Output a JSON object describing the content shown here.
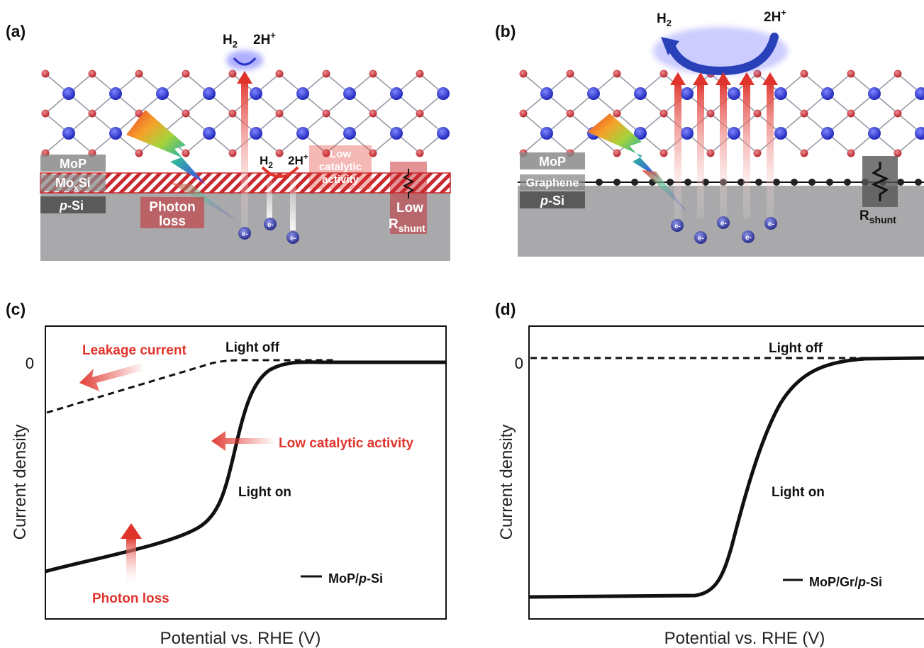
{
  "panels": {
    "a": {
      "label": "(a)",
      "layers": {
        "top": "MoP",
        "mid_main": "Mo",
        "mid_sub": "x",
        "mid_tail": "Si",
        "bottom_prefix": "p",
        "bottom_suffix": "-Si"
      },
      "reaction": {
        "h2_main": "H",
        "h2_sub": "2",
        "proton_main": "2H",
        "proton_sup": "+"
      },
      "reaction_small": {
        "h2_main": "H",
        "h2_sub": "2",
        "proton_main": "2H",
        "proton_sup": "+"
      },
      "photon_loss": {
        "line1": "Photon",
        "line2": "loss"
      },
      "low_catalytic": {
        "line1": "Low",
        "line2": "catalytic",
        "line3": "activity"
      },
      "shunt": {
        "line1": "Low",
        "line2_main": "R",
        "line2_sub": "shunt"
      },
      "electron": {
        "main": "e",
        "sup": "-"
      }
    },
    "b": {
      "label": "(b)",
      "layers": {
        "top": "MoP",
        "mid": "Graphene",
        "bottom_prefix": "p",
        "bottom_suffix": "-Si"
      },
      "reaction": {
        "h2_main": "H",
        "h2_sub": "2",
        "proton_main": "2H",
        "proton_sup": "+"
      },
      "shunt": {
        "main": "R",
        "sub": "shunt"
      },
      "electron": {
        "main": "e",
        "sup": "-"
      }
    },
    "c": {
      "label": "(c)",
      "zero_label": "0",
      "ylabel": "Current density",
      "xlabel": "Potential vs. RHE (V)",
      "annotations": {
        "leakage": "Leakage current",
        "light_off": "Light off",
        "low_catalytic": "Low catalytic activity",
        "light_on": "Light on",
        "photon_loss": "Photon loss"
      },
      "legend": {
        "prefix": "MoP/",
        "italic": "p",
        "suffix": "-Si"
      }
    },
    "d": {
      "label": "(d)",
      "zero_label": "0",
      "ylabel": "Current density",
      "xlabel": "Potential vs. RHE (V)",
      "annotations": {
        "light_off": "Light off",
        "light_on": "Light on"
      },
      "legend": {
        "prefix": "MoP/Gr/",
        "italic": "p",
        "suffix": "-Si"
      }
    }
  },
  "colors": {
    "accent_red": "#e0332b",
    "electron_blue": "#3a3fa0",
    "lattice_blue": "#2a33c8",
    "lattice_red": "#c8383e",
    "substrate_gray": "#a9a9ab"
  }
}
